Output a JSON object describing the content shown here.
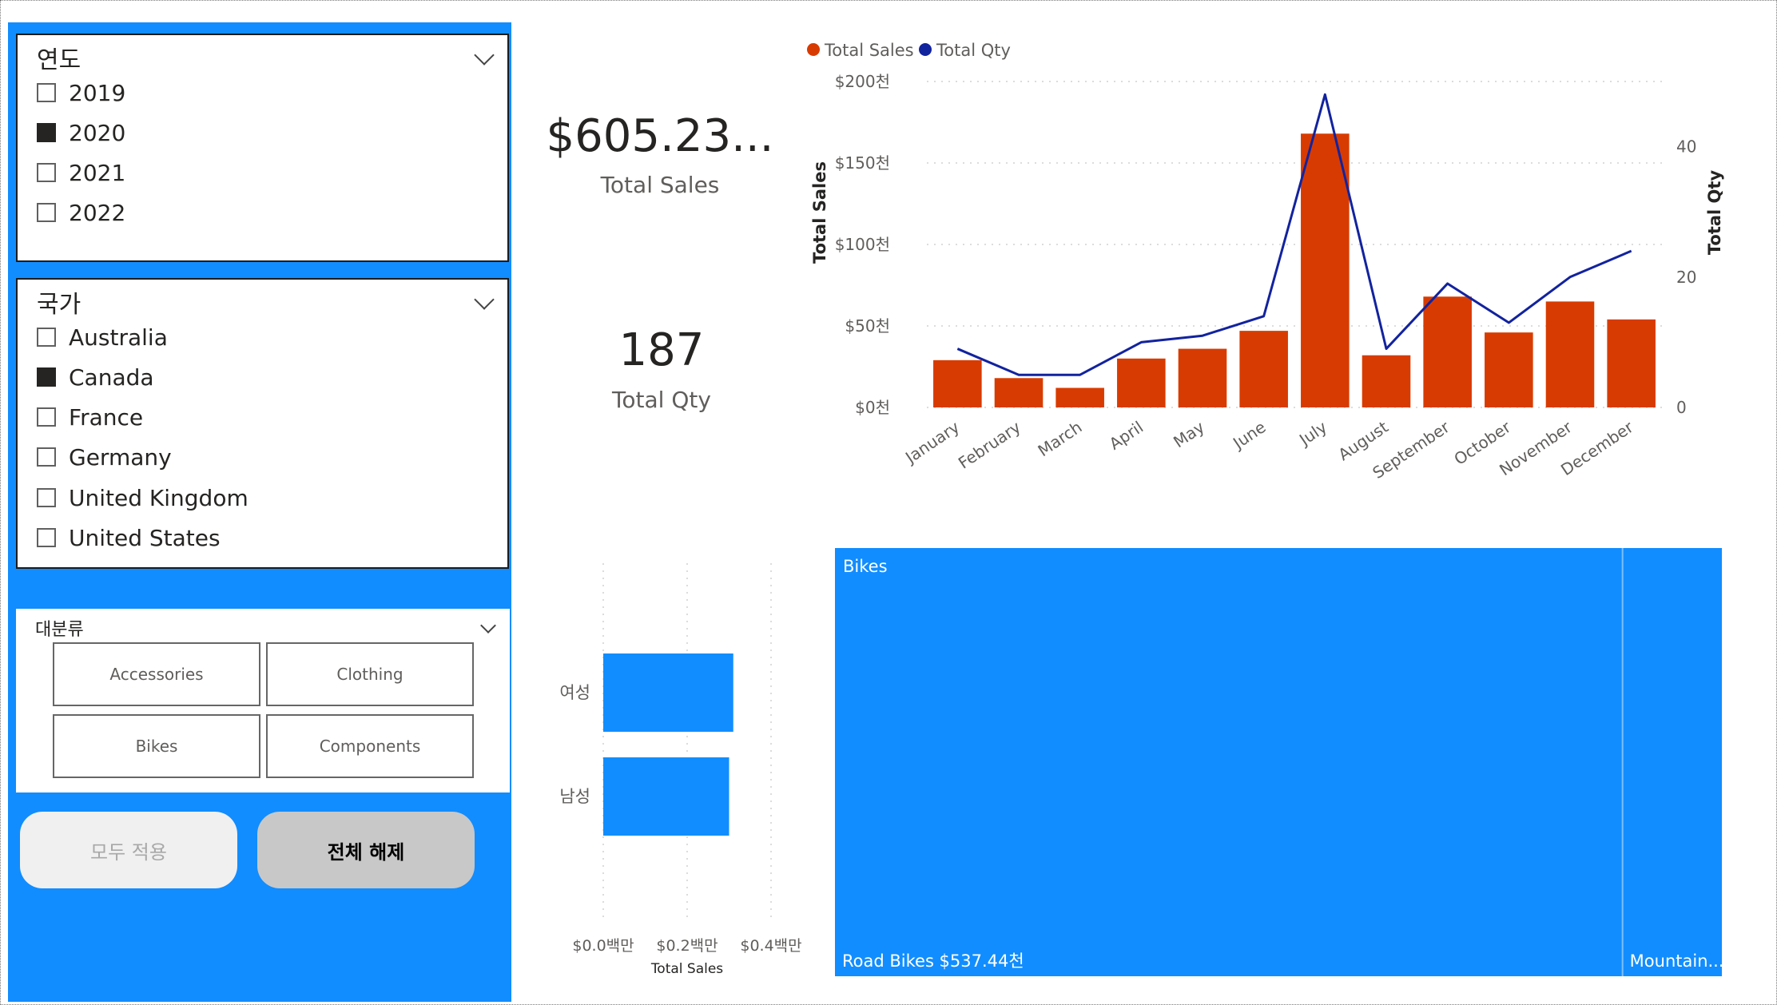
{
  "slicers": {
    "year": {
      "title": "연도",
      "items": [
        {
          "label": "2019",
          "checked": false
        },
        {
          "label": "2020",
          "checked": true
        },
        {
          "label": "2021",
          "checked": false
        },
        {
          "label": "2022",
          "checked": false
        }
      ]
    },
    "country": {
      "title": "국가",
      "items": [
        {
          "label": "Australia",
          "checked": false
        },
        {
          "label": "Canada",
          "checked": true
        },
        {
          "label": "France",
          "checked": false
        },
        {
          "label": "Germany",
          "checked": false
        },
        {
          "label": "United Kingdom",
          "checked": false
        },
        {
          "label": "United States",
          "checked": false
        }
      ]
    },
    "category": {
      "title": "대분류",
      "tiles": [
        "Accessories",
        "Clothing",
        "Bikes",
        "Components"
      ]
    }
  },
  "buttons": {
    "apply_all": "모두 적용",
    "clear_all": "전체 해제"
  },
  "kpis": {
    "total_sales": {
      "value": "$605.23...",
      "label": "Total Sales"
    },
    "total_qty": {
      "value": "187",
      "label": "Total Qty"
    }
  },
  "colors": {
    "panel": "#118dff",
    "sales_bar": "#d83b01",
    "qty_line": "#12239e",
    "gender_bar": "#118dff",
    "treemap": "#118dff"
  },
  "chart_data": [
    {
      "type": "bar",
      "combo": "bar+line",
      "legend": [
        "Total Sales",
        "Total Qty"
      ],
      "legend_position": "top-left",
      "categories": [
        "January",
        "February",
        "March",
        "April",
        "May",
        "June",
        "July",
        "August",
        "September",
        "October",
        "November",
        "December"
      ],
      "series": [
        {
          "name": "Total Sales",
          "type": "bar",
          "axis": "left",
          "values": [
            29,
            18,
            12,
            30,
            36,
            47,
            168,
            32,
            68,
            46,
            65,
            54
          ]
        },
        {
          "name": "Total Qty",
          "type": "line",
          "axis": "right",
          "values": [
            9,
            5,
            5,
            10,
            11,
            14,
            48,
            9,
            19,
            13,
            20,
            24
          ]
        }
      ],
      "ylabel": "Total Sales",
      "y2label": "Total Qty",
      "yticks": [
        "$0천",
        "$50천",
        "$100천",
        "$150천",
        "$200천"
      ],
      "y2ticks": [
        "0",
        "20",
        "40"
      ],
      "ylim": [
        0,
        200
      ],
      "y2lim": [
        0,
        50
      ],
      "grid": true
    },
    {
      "type": "bar",
      "orientation": "horizontal",
      "categories": [
        "여성",
        "남성"
      ],
      "values": [
        0.31,
        0.3
      ],
      "xlabel": "Total Sales",
      "xticks": [
        "$0.0백만",
        "$0.2백만",
        "$0.4백만"
      ],
      "xlim": [
        0,
        0.4
      ],
      "grid": true
    },
    {
      "type": "treemap",
      "title": "Bikes",
      "items": [
        {
          "label": "Road Bikes $537.44천",
          "value": 537.44
        },
        {
          "label": "Mountain...",
          "value": 67.79
        }
      ]
    }
  ]
}
